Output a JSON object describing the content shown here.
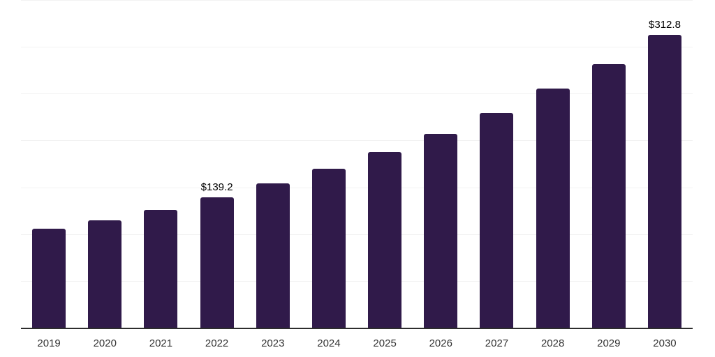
{
  "chart_data": {
    "type": "bar",
    "title": "",
    "xlabel": "",
    "ylabel": "",
    "categories": [
      "2019",
      "2020",
      "2021",
      "2022",
      "2023",
      "2024",
      "2025",
      "2026",
      "2027",
      "2028",
      "2029",
      "2030"
    ],
    "values": [
      105.6,
      114.5,
      125.7,
      139.2,
      153.9,
      169.5,
      187.4,
      207.4,
      229.7,
      255.8,
      281.8,
      312.8
    ],
    "data_labels": [
      "",
      "",
      "",
      "$139.2",
      "",
      "",
      "",
      "",
      "",
      "",
      "",
      "$312.8"
    ],
    "ylim": [
      0,
      350
    ],
    "gridline_step": 50,
    "grid": true,
    "y_tick_labels_visible": false,
    "legend_position": "none",
    "colors": {
      "bar": "#301a4a",
      "axis_line": "#2d2d2d",
      "gridline": "#f2f2f2",
      "tick_label": "#333333",
      "data_label": "#000000",
      "background": "#ffffff"
    }
  }
}
